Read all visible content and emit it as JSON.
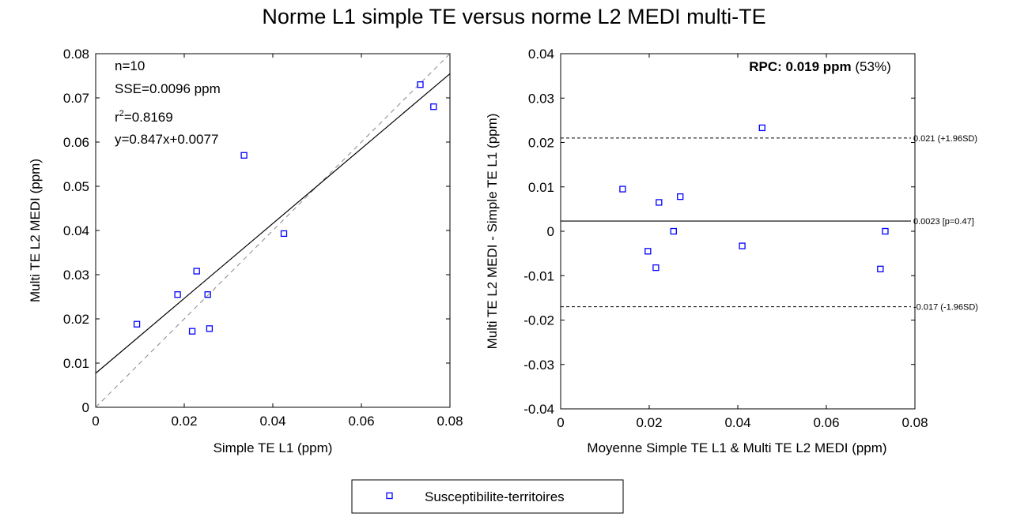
{
  "figure": {
    "title": "Norme L1 simple TE versus norme L2 MEDI multi-TE"
  },
  "legend": {
    "label": "Susceptibilite-territoires",
    "position": "bottom-center",
    "marker": "open-square",
    "color": "#0000ff"
  },
  "chart_data": [
    {
      "type": "scatter",
      "title": "",
      "xlabel": "Simple TE L1 (ppm)",
      "ylabel": "Multi TE L2 MEDI (ppm)",
      "xlim": [
        0,
        0.08
      ],
      "ylim": [
        0,
        0.08
      ],
      "xticks": [
        0,
        0.02,
        0.04,
        0.06,
        0.08
      ],
      "xtick_labels": [
        "0",
        "0.02",
        "0.04",
        "0.06",
        "0.08"
      ],
      "yticks": [
        0,
        0.01,
        0.02,
        0.03,
        0.04,
        0.05,
        0.06,
        0.07,
        0.08
      ],
      "ytick_labels": [
        "0",
        "0.01",
        "0.02",
        "0.03",
        "0.04",
        "0.05",
        "0.06",
        "0.07",
        "0.08"
      ],
      "grid": false,
      "series": [
        {
          "name": "Susceptibilite-territoires",
          "color": "#0000ff",
          "marker": "open-square",
          "x": [
            0.0093,
            0.0185,
            0.0218,
            0.0228,
            0.0253,
            0.0257,
            0.0335,
            0.0425,
            0.0733,
            0.0763
          ],
          "y": [
            0.0188,
            0.0255,
            0.0172,
            0.0308,
            0.0255,
            0.0178,
            0.057,
            0.0393,
            0.073,
            0.068
          ]
        }
      ],
      "fit_line": {
        "slope": 0.847,
        "intercept": 0.0077,
        "color": "#000000",
        "style": "solid"
      },
      "identity_line": {
        "color": "#888888",
        "style": "dashed"
      },
      "stats": {
        "n_label": "n=10",
        "sse_label": "SSE=0.0096 ppm",
        "r2_prefix": "r",
        "r2_sup": "2",
        "r2_value": "=0.8169",
        "eq_label": "y=0.847x+0.0077"
      }
    },
    {
      "type": "scatter",
      "title": "",
      "xlabel": "Moyenne Simple TE L1 & Multi TE L2 MEDI (ppm)",
      "ylabel": "Multi TE L2 MEDI - Simple TE L1 (ppm)",
      "xlim": [
        0,
        0.08
      ],
      "ylim": [
        -0.04,
        0.04
      ],
      "xticks": [
        0,
        0.02,
        0.04,
        0.06,
        0.08
      ],
      "xtick_labels": [
        "0",
        "0.02",
        "0.04",
        "0.06",
        "0.08"
      ],
      "yticks": [
        -0.04,
        -0.03,
        -0.02,
        -0.01,
        0,
        0.01,
        0.02,
        0.03,
        0.04
      ],
      "ytick_labels": [
        "-0.04",
        "-0.03",
        "-0.02",
        "-0.01",
        "0",
        "0.01",
        "0.02",
        "0.03",
        "0.04"
      ],
      "grid": false,
      "series": [
        {
          "name": "Susceptibilite-territoires",
          "color": "#0000ff",
          "marker": "open-square",
          "x": [
            0.014,
            0.0197,
            0.0215,
            0.0222,
            0.0255,
            0.027,
            0.041,
            0.0455,
            0.0722,
            0.0733
          ],
          "y": [
            0.0095,
            -0.0045,
            -0.0082,
            0.0065,
            0.0,
            0.0078,
            -0.0033,
            0.0233,
            -0.0085,
            0.0
          ]
        }
      ],
      "reference_lines": [
        {
          "y": 0.021,
          "style": "dashed",
          "label": "0.021 (+1.96SD)"
        },
        {
          "y": 0.0023,
          "style": "solid",
          "label": "0.0023 [p=0.47]"
        },
        {
          "y": -0.017,
          "style": "dashed",
          "label": "-0.017 (-1.96SD)"
        }
      ],
      "rpc": {
        "prefix": "RPC: ",
        "value": "0.019 ppm",
        "percent": " (53%)"
      }
    }
  ]
}
